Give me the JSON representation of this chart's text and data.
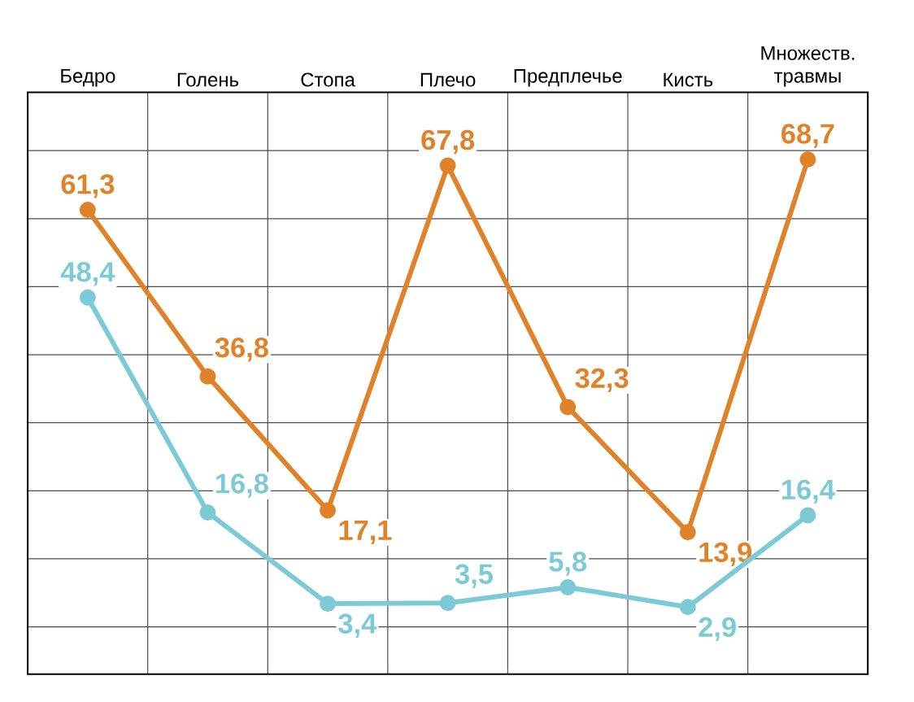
{
  "chart_data": {
    "type": "line",
    "categories": [
      "Бедро",
      "Голень",
      "Стопа",
      "Плечо",
      "Предплечье",
      "Кисть",
      "Множеств. травмы"
    ],
    "series": [
      {
        "color": "#e0822a",
        "values": [
          61.3,
          36.8,
          17.1,
          67.8,
          32.3,
          13.9,
          68.7
        ],
        "value_labels": [
          "61,3",
          "36,8",
          "17,1",
          "67,8",
          "32,3",
          "13,9",
          "68,7"
        ]
      },
      {
        "color": "#7ccad6",
        "values": [
          48.4,
          16.8,
          3.4,
          3.5,
          5.8,
          2.9,
          16.4
        ],
        "value_labels": [
          "48,4",
          "16,8",
          "3,4",
          "3,5",
          "5,8",
          "2,9",
          "16,4"
        ]
      }
    ],
    "grid": true,
    "marker": "circle",
    "tick_labels": "x",
    "line_style": "solid"
  }
}
